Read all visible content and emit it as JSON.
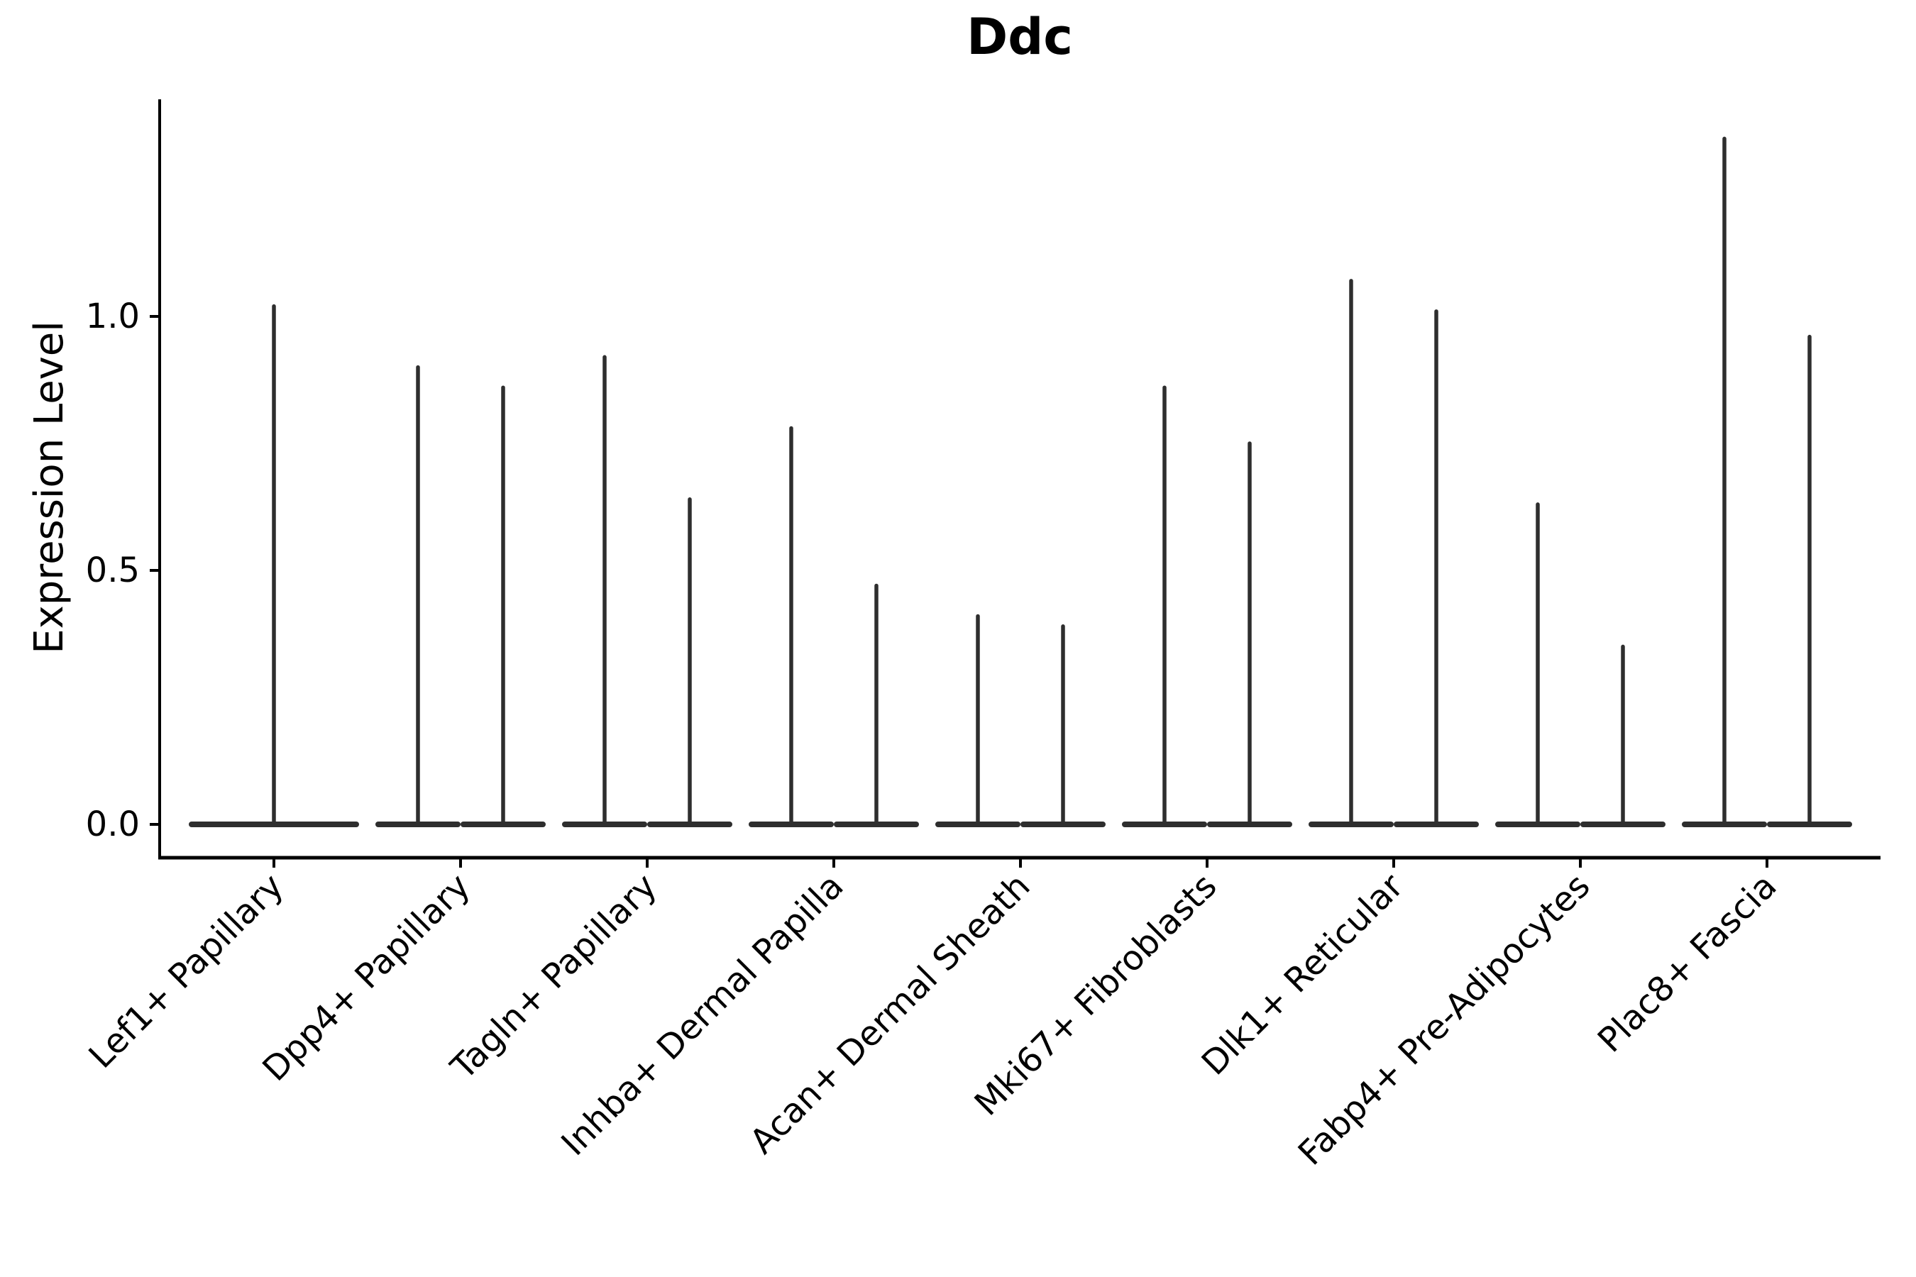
{
  "figure": {
    "background": "#ffffff"
  },
  "chart_data": {
    "type": "violin",
    "title": "Ddc",
    "xlabel": "",
    "ylabel": "Expression Level",
    "ytick_labels": [
      "0.0",
      "0.5",
      "1.0"
    ],
    "ytick_values": [
      0.0,
      0.5,
      1.0
    ],
    "ylim": [
      -0.07,
      1.43
    ],
    "xtick_rotation_deg": 45,
    "grid": false,
    "legend": null,
    "style_note": "Each violin is collapsed to a thin horizontal bar at 0 (most cells express zero) with a narrow vertical spike up to the maximum expression value; first category has one full-width violin, all others have two half-width violins side by side.",
    "categories": [
      {
        "label": "Lef1+ Papillary",
        "spike_maxima": [
          1.02
        ]
      },
      {
        "label": "Dpp4+ Papillary",
        "spike_maxima": [
          0.9,
          0.86
        ]
      },
      {
        "label": "Tagln+ Papillary",
        "spike_maxima": [
          0.92,
          0.64
        ]
      },
      {
        "label": "Inhba+ Dermal Papilla",
        "spike_maxima": [
          0.78,
          0.47
        ]
      },
      {
        "label": "Acan+ Dermal Sheath",
        "spike_maxima": [
          0.41,
          0.39
        ]
      },
      {
        "label": "Mki67+ Fibroblasts",
        "spike_maxima": [
          0.86,
          0.75
        ]
      },
      {
        "label": "Dlk1+ Reticular",
        "spike_maxima": [
          1.07,
          1.01
        ]
      },
      {
        "label": "Fabp4+ Pre-Adipocytes",
        "spike_maxima": [
          0.63,
          0.35
        ]
      },
      {
        "label": "Plac8+ Fascia",
        "spike_maxima": [
          1.35,
          0.96
        ]
      }
    ],
    "colors": {
      "violin": "#2e2e2e",
      "spine": "#000000",
      "text": "#000000",
      "background": "#ffffff"
    }
  }
}
